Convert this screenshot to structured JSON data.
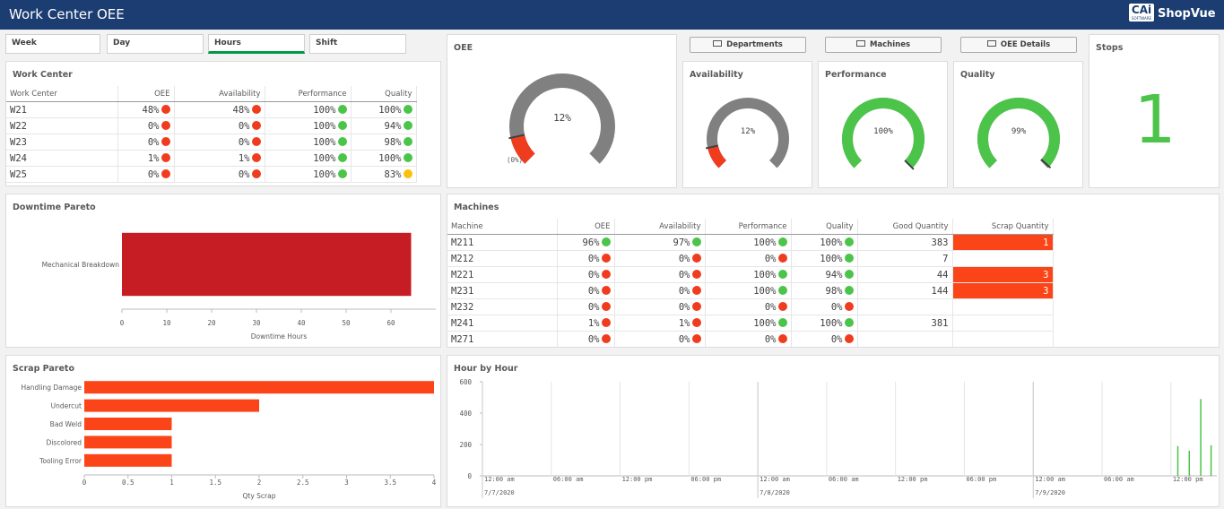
{
  "header": {
    "title": "Work Center OEE",
    "logo_mark": "CAi",
    "logo_sub": "SOFTWARE",
    "logo_text": "ShopVue"
  },
  "tabs": {
    "items": [
      "Week",
      "Day",
      "Hours",
      "Shift"
    ],
    "active": 2
  },
  "status_colors": {
    "red": "#f03c1e",
    "green": "#4cc44a",
    "yellow": "#f8c20c"
  },
  "work_center": {
    "title": "Work Center",
    "columns": [
      "Work Center",
      "OEE",
      "Availability",
      "Performance",
      "Quality"
    ],
    "rows": [
      [
        "W21",
        "48%",
        "48%",
        "100%",
        "100%"
      ],
      [
        "W22",
        "0%",
        "0%",
        "100%",
        "94%"
      ],
      [
        "W23",
        "0%",
        "0%",
        "100%",
        "98%"
      ],
      [
        "W24",
        "1%",
        "1%",
        "100%",
        "100%"
      ],
      [
        "W25",
        "0%",
        "0%",
        "100%",
        "83%"
      ]
    ],
    "status": [
      [
        "red",
        "red",
        "green",
        "green"
      ],
      [
        "red",
        "red",
        "green",
        "green"
      ],
      [
        "red",
        "red",
        "green",
        "green"
      ],
      [
        "red",
        "red",
        "green",
        "green"
      ],
      [
        "red",
        "red",
        "green",
        "yellow"
      ]
    ]
  },
  "oee": {
    "title": "OEE",
    "value": 12,
    "value_label": "12%",
    "min_label": "(0%)",
    "ylim": [
      0,
      100
    ],
    "color": "#f03c1e"
  },
  "buttons": [
    "Departments",
    "Machines",
    "OEE Details"
  ],
  "gauges": [
    {
      "title": "Availability",
      "value": 12,
      "value_label": "12%",
      "ylim": [
        0,
        100
      ],
      "color": "#f03c1e"
    },
    {
      "title": "Performance",
      "value": 100,
      "value_label": "100%",
      "ylim": [
        0,
        100
      ],
      "color": "#4cc44a"
    },
    {
      "title": "Quality",
      "value": 99,
      "value_label": "99%",
      "ylim": [
        0,
        100
      ],
      "color": "#4cc44a"
    }
  ],
  "stops": {
    "title": "Stops",
    "value": 1,
    "color": "#4cc44a"
  },
  "machines": {
    "title": "Machines",
    "columns": [
      "Machine",
      "OEE",
      "Availability",
      "Performance",
      "Quality",
      "Good Quantity",
      "Scrap Quantity"
    ],
    "rows": [
      [
        "M211",
        "96%",
        "97%",
        "100%",
        "100%",
        383,
        1
      ],
      [
        "M212",
        "0%",
        "0%",
        "0%",
        "100%",
        7,
        null
      ],
      [
        "M221",
        "0%",
        "0%",
        "100%",
        "94%",
        44,
        3
      ],
      [
        "M231",
        "0%",
        "0%",
        "100%",
        "98%",
        144,
        3
      ],
      [
        "M232",
        "0%",
        "0%",
        "0%",
        "0%",
        null,
        null
      ],
      [
        "M241",
        "1%",
        "1%",
        "100%",
        "100%",
        381,
        null
      ],
      [
        "M271",
        "0%",
        "0%",
        "0%",
        "0%",
        null,
        null
      ]
    ],
    "status": [
      [
        "green",
        "green",
        "green",
        "green"
      ],
      [
        "red",
        "red",
        "red",
        "green"
      ],
      [
        "red",
        "red",
        "green",
        "green"
      ],
      [
        "red",
        "red",
        "green",
        "green"
      ],
      [
        "red",
        "red",
        "red",
        "red"
      ],
      [
        "red",
        "red",
        "green",
        "green"
      ],
      [
        "red",
        "red",
        "red",
        "red"
      ]
    ],
    "highlight_column": 6,
    "highlight_color": "#fc4419"
  },
  "chart_data": [
    {
      "type": "bar",
      "orientation": "horizontal",
      "title": "Downtime Pareto",
      "categories": [
        "Mechanical Breakdown"
      ],
      "values": [
        64.5
      ],
      "color": "#c51d23",
      "xlim": [
        0,
        70
      ],
      "xticks": [
        0,
        10,
        20,
        30,
        40,
        50,
        60
      ],
      "x_label": "Downtime Hours",
      "grid": false
    },
    {
      "type": "bar",
      "orientation": "horizontal",
      "title": "Scrap Pareto",
      "categories": [
        "Handling Damage",
        "Undercut",
        "Bad Weld",
        "Discolored",
        "Tooling Error"
      ],
      "values": [
        4,
        2,
        1,
        1,
        1
      ],
      "color": "#fc4419",
      "xlim": [
        0,
        4
      ],
      "xticks": [
        0,
        0.5,
        1,
        1.5,
        2,
        2.5,
        3,
        3.5,
        4
      ],
      "x_label": "Qty Scrap",
      "grid": false
    },
    {
      "type": "bar",
      "orientation": "vertical",
      "title": "Hour by Hour",
      "x": [
        60.6,
        61.6,
        62.6,
        63.5
      ],
      "values": [
        190,
        160,
        490,
        195
      ],
      "color": "#4cc44a",
      "xlim": [
        0,
        64
      ],
      "xticks": [
        {
          "value": 0,
          "label": "12:00 am"
        },
        {
          "value": 6,
          "label": "06:00 am"
        },
        {
          "value": 12,
          "label": "12:00 pm"
        },
        {
          "value": 18,
          "label": "06:00 pm"
        },
        {
          "value": 24,
          "label": "12:00 am"
        },
        {
          "value": 30,
          "label": "06:00 am"
        },
        {
          "value": 36,
          "label": "12:00 pm"
        },
        {
          "value": 42,
          "label": "06:00 pm"
        },
        {
          "value": 48,
          "label": "12:00 am"
        },
        {
          "value": 54,
          "label": "06:00 am"
        },
        {
          "value": 60,
          "label": "12:00 pm"
        }
      ],
      "date_ticks": [
        {
          "value": 0,
          "label": "7/7/2020"
        },
        {
          "value": 24,
          "label": "7/8/2020"
        },
        {
          "value": 48,
          "label": "7/9/2020"
        }
      ],
      "ylim": [
        0,
        600
      ],
      "yticks": [
        0,
        200,
        400,
        600
      ],
      "grid": true
    }
  ]
}
